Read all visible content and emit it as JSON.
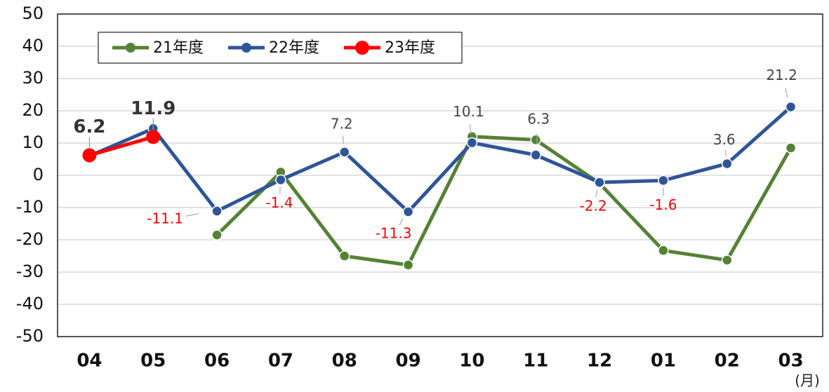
{
  "chart_data": {
    "type": "line",
    "categories": [
      "04",
      "05",
      "06",
      "07",
      "08",
      "09",
      "10",
      "11",
      "12",
      "01",
      "02",
      "03"
    ],
    "x_label": "(月)",
    "series": [
      {
        "name": "21年度",
        "color": "#548235",
        "values": [
          null,
          null,
          -18.5,
          1,
          -25,
          -27.8,
          12,
          11,
          -2.5,
          -23.3,
          -26.3,
          8.5
        ]
      },
      {
        "name": "22年度",
        "color": "#2f5597",
        "values": [
          6,
          14.5,
          -11.1,
          -1.4,
          7.2,
          -11.3,
          10.1,
          6.3,
          -2.2,
          -1.6,
          3.6,
          21.2
        ]
      },
      {
        "name": "23年度",
        "color": "#ff0000",
        "values": [
          6.2,
          11.9,
          null,
          null,
          null,
          null,
          null,
          null,
          null,
          null,
          null,
          null
        ]
      }
    ],
    "ylim": [
      -50,
      50
    ],
    "yticks": [
      -50,
      -40,
      -30,
      -20,
      -10,
      0,
      10,
      20,
      30,
      40,
      50
    ],
    "grid": true,
    "legend": "top-left"
  }
}
